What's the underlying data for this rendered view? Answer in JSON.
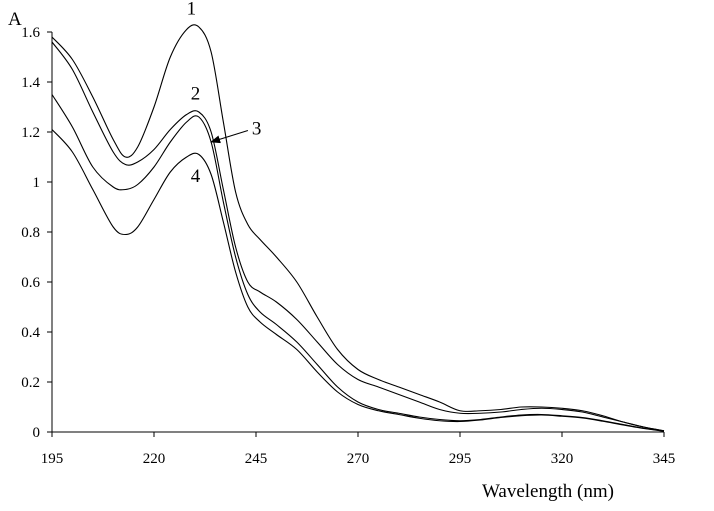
{
  "chart_data": {
    "type": "line",
    "title": "",
    "xlabel": "Wavelength (nm)",
    "ylabel": "A",
    "xlim": [
      195,
      345
    ],
    "ylim": [
      0,
      1.6
    ],
    "x_ticks": [
      195,
      220,
      245,
      270,
      295,
      320,
      345
    ],
    "y_ticks": [
      0,
      0.2,
      0.4,
      0.6,
      0.8,
      1,
      1.2,
      1.4,
      1.6
    ],
    "x_tick_labels": [
      "195",
      "220",
      "245",
      "270",
      "295",
      "320",
      "345"
    ],
    "y_tick_labels": [
      "0",
      "0.2",
      "0.4",
      "0.6",
      "0.8",
      "1",
      "1.2",
      "1.4",
      "1.6"
    ],
    "grid": false,
    "legend": "none",
    "series": [
      {
        "label": "1",
        "x": [
          195,
          200,
          205,
          210,
          213,
          216,
          220,
          224,
          228,
          231,
          234,
          237,
          240,
          243,
          246,
          250,
          255,
          260,
          265,
          270,
          275,
          280,
          285,
          290,
          295,
          300,
          305,
          310,
          315,
          320,
          325,
          330,
          335,
          340,
          345
        ],
        "y": [
          1.58,
          1.49,
          1.34,
          1.17,
          1.1,
          1.14,
          1.3,
          1.5,
          1.61,
          1.62,
          1.52,
          1.24,
          0.96,
          0.83,
          0.77,
          0.7,
          0.6,
          0.46,
          0.33,
          0.25,
          0.21,
          0.18,
          0.15,
          0.12,
          0.085,
          0.085,
          0.09,
          0.1,
          0.1,
          0.095,
          0.085,
          0.065,
          0.04,
          0.02,
          0.005
        ]
      },
      {
        "label": "2",
        "x": [
          195,
          200,
          205,
          210,
          213,
          216,
          220,
          224,
          228,
          231,
          234,
          237,
          240,
          243,
          246,
          250,
          255,
          260,
          265,
          270,
          275,
          280,
          285,
          290,
          295,
          300,
          305,
          310,
          315,
          320,
          325,
          330,
          335,
          340,
          345
        ],
        "y": [
          1.56,
          1.45,
          1.28,
          1.12,
          1.07,
          1.08,
          1.13,
          1.21,
          1.27,
          1.28,
          1.2,
          0.97,
          0.74,
          0.6,
          0.56,
          0.52,
          0.45,
          0.36,
          0.27,
          0.21,
          0.18,
          0.15,
          0.12,
          0.09,
          0.075,
          0.075,
          0.08,
          0.09,
          0.095,
          0.09,
          0.08,
          0.06,
          0.04,
          0.02,
          0.005
        ]
      },
      {
        "label": "3",
        "x": [
          195,
          200,
          205,
          210,
          213,
          216,
          220,
          224,
          228,
          231,
          234,
          237,
          240,
          243,
          246,
          250,
          255,
          260,
          265,
          270,
          275,
          280,
          285,
          290,
          295,
          300,
          305,
          310,
          315,
          320,
          325,
          330,
          335,
          340,
          345
        ],
        "y": [
          1.35,
          1.22,
          1.06,
          0.98,
          0.97,
          0.99,
          1.06,
          1.16,
          1.24,
          1.26,
          1.16,
          0.92,
          0.7,
          0.55,
          0.48,
          0.43,
          0.36,
          0.27,
          0.18,
          0.12,
          0.09,
          0.075,
          0.06,
          0.05,
          0.045,
          0.05,
          0.06,
          0.068,
          0.07,
          0.065,
          0.058,
          0.045,
          0.03,
          0.015,
          0.004
        ]
      },
      {
        "label": "4",
        "x": [
          195,
          200,
          205,
          210,
          213,
          216,
          220,
          224,
          228,
          231,
          234,
          237,
          240,
          243,
          246,
          250,
          255,
          260,
          265,
          270,
          275,
          280,
          285,
          290,
          295,
          300,
          305,
          310,
          315,
          320,
          325,
          330,
          335,
          340,
          345
        ],
        "y": [
          1.21,
          1.12,
          0.97,
          0.82,
          0.79,
          0.82,
          0.93,
          1.04,
          1.1,
          1.11,
          1.03,
          0.84,
          0.64,
          0.5,
          0.44,
          0.39,
          0.33,
          0.24,
          0.16,
          0.11,
          0.085,
          0.07,
          0.055,
          0.045,
          0.042,
          0.048,
          0.058,
          0.065,
          0.068,
          0.063,
          0.056,
          0.043,
          0.028,
          0.014,
          0.003
        ]
      }
    ],
    "annotations": [
      {
        "text": "1",
        "x": 228,
        "y": 1.67
      },
      {
        "text": "2",
        "x": 229,
        "y": 1.33
      },
      {
        "text": "3",
        "x": 244,
        "y": 1.19,
        "arrow_to": [
          234,
          1.16
        ]
      },
      {
        "text": "4",
        "x": 229,
        "y": 1.0
      }
    ]
  }
}
